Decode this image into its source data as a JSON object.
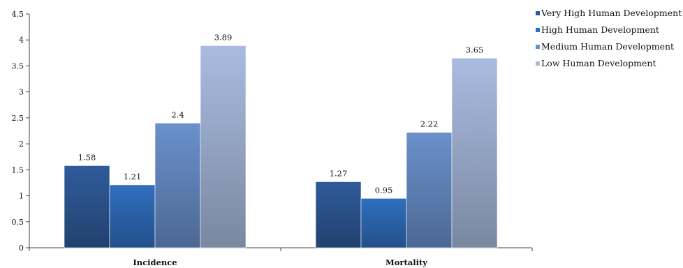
{
  "chart_data": {
    "type": "bar",
    "categories": [
      "Incidence",
      "Mortality"
    ],
    "series": [
      {
        "name": "Very High Human Development",
        "values": [
          1.58,
          1.27
        ],
        "color": "#2F5B9A"
      },
      {
        "name": "High Human Development",
        "values": [
          1.21,
          0.95
        ],
        "color": "#2F6FBF"
      },
      {
        "name": "Medium Human Development",
        "values": [
          2.4,
          2.22
        ],
        "color": "#6A91CC"
      },
      {
        "name": "Low Human Development",
        "values": [
          3.89,
          3.65
        ],
        "color": "#A9BCE0"
      }
    ],
    "data_labels": [
      [
        "1.58",
        "1.27"
      ],
      [
        "1.21",
        "0.95"
      ],
      [
        "2.4",
        "2.22"
      ],
      [
        "3.89",
        "3.65"
      ]
    ],
    "yticks": [
      "0",
      "0.5",
      "1",
      "1.5",
      "2",
      "2.5",
      "3",
      "3.5",
      "4",
      "4.5"
    ],
    "ylim": [
      0,
      4.5
    ],
    "title": "",
    "xlabel": "",
    "ylabel": "",
    "grid": false,
    "legend_position": "top-right"
  }
}
